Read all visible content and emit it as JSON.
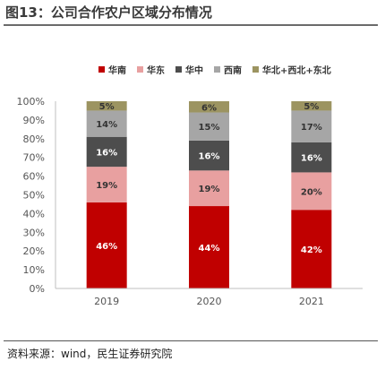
{
  "figure": {
    "title": "图13：公司合作农户区域分布情况",
    "source": "资料来源：wind，民生证券研究院"
  },
  "chart_data": {
    "type": "bar",
    "stacked": true,
    "categories": [
      "2019",
      "2020",
      "2021"
    ],
    "yticks": [
      "0%",
      "10%",
      "20%",
      "30%",
      "40%",
      "50%",
      "60%",
      "70%",
      "80%",
      "90%",
      "100%"
    ],
    "ylim": [
      0,
      100
    ],
    "legend_position": "top",
    "series": [
      {
        "name": "华南",
        "values": [
          46,
          44,
          42
        ],
        "labels": [
          "46%",
          "44%",
          "42%"
        ],
        "color": "#c00000",
        "label_color": "#ffffff"
      },
      {
        "name": "华东",
        "values": [
          19,
          19,
          20
        ],
        "labels": [
          "19%",
          "19%",
          "20%"
        ],
        "color": "#e8a0a0",
        "label_color": "#333333"
      },
      {
        "name": "华中",
        "values": [
          16,
          16,
          16
        ],
        "labels": [
          "16%",
          "16%",
          "16%"
        ],
        "color": "#4d4d4d",
        "label_color": "#ffffff"
      },
      {
        "name": "西南",
        "values": [
          14,
          15,
          17
        ],
        "labels": [
          "14%",
          "15%",
          "17%"
        ],
        "color": "#a6a6a6",
        "label_color": "#333333"
      },
      {
        "name": "华北+西北+东北",
        "values": [
          5,
          6,
          5
        ],
        "labels": [
          "5%",
          "6%",
          "5%"
        ],
        "color": "#9c9461",
        "label_color": "#333333"
      }
    ]
  }
}
